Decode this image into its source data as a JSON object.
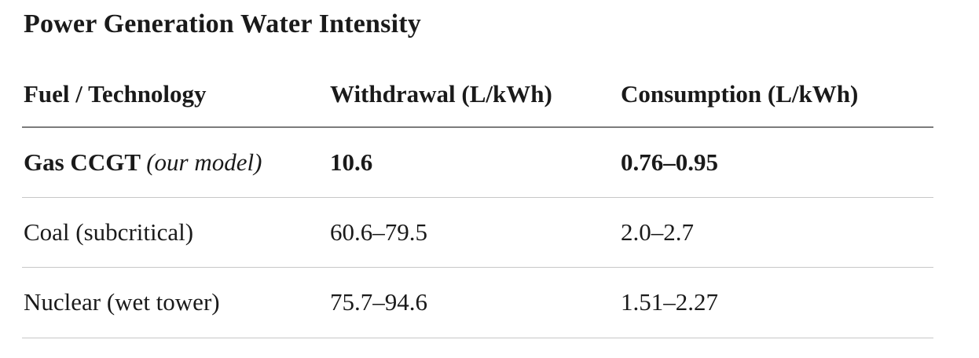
{
  "page": {
    "background_color": "#ffffff",
    "text_color": "#1a1a1a",
    "header_rule_color": "#7c7c7c",
    "row_rule_color": "#c7c7c7"
  },
  "title": "Power Generation Water Intensity",
  "table": {
    "columns": {
      "fuel": "Fuel / Technology",
      "withdrawal": "Withdrawal (L/kWh)",
      "consumption": "Consumption (L/kWh)"
    },
    "rows": [
      {
        "fuel": "Gas CCGT",
        "fuel_note": "(our model)",
        "withdrawal": "10.6",
        "consumption": "0.76–0.95",
        "emphasis": true
      },
      {
        "fuel": "Coal (subcritical)",
        "fuel_note": "",
        "withdrawal": "60.6–79.5",
        "consumption": "2.0–2.7",
        "emphasis": false
      },
      {
        "fuel": "Nuclear (wet tower)",
        "fuel_note": "",
        "withdrawal": "75.7–94.6",
        "consumption": "1.51–2.27",
        "emphasis": false
      }
    ]
  },
  "chart_data": {
    "type": "table",
    "title": "Power Generation Water Intensity",
    "columns": [
      "Fuel / Technology",
      "Withdrawal (L/kWh)",
      "Consumption (L/kWh)"
    ],
    "rows": [
      [
        "Gas CCGT (our model)",
        "10.6",
        "0.76–0.95"
      ],
      [
        "Coal (subcritical)",
        "60.6–79.5",
        "2.0–2.7"
      ],
      [
        "Nuclear (wet tower)",
        "75.7–94.6",
        "1.51–2.27"
      ]
    ],
    "withdrawal_ranges_l_per_kwh": {
      "Gas CCGT (our model)": [
        10.6,
        10.6
      ],
      "Coal (subcritical)": [
        60.6,
        79.5
      ],
      "Nuclear (wet tower)": [
        75.7,
        94.6
      ]
    },
    "consumption_ranges_l_per_kwh": {
      "Gas CCGT (our model)": [
        0.76,
        0.95
      ],
      "Coal (subcritical)": [
        2.0,
        2.7
      ],
      "Nuclear (wet tower)": [
        1.51,
        2.27
      ]
    }
  }
}
